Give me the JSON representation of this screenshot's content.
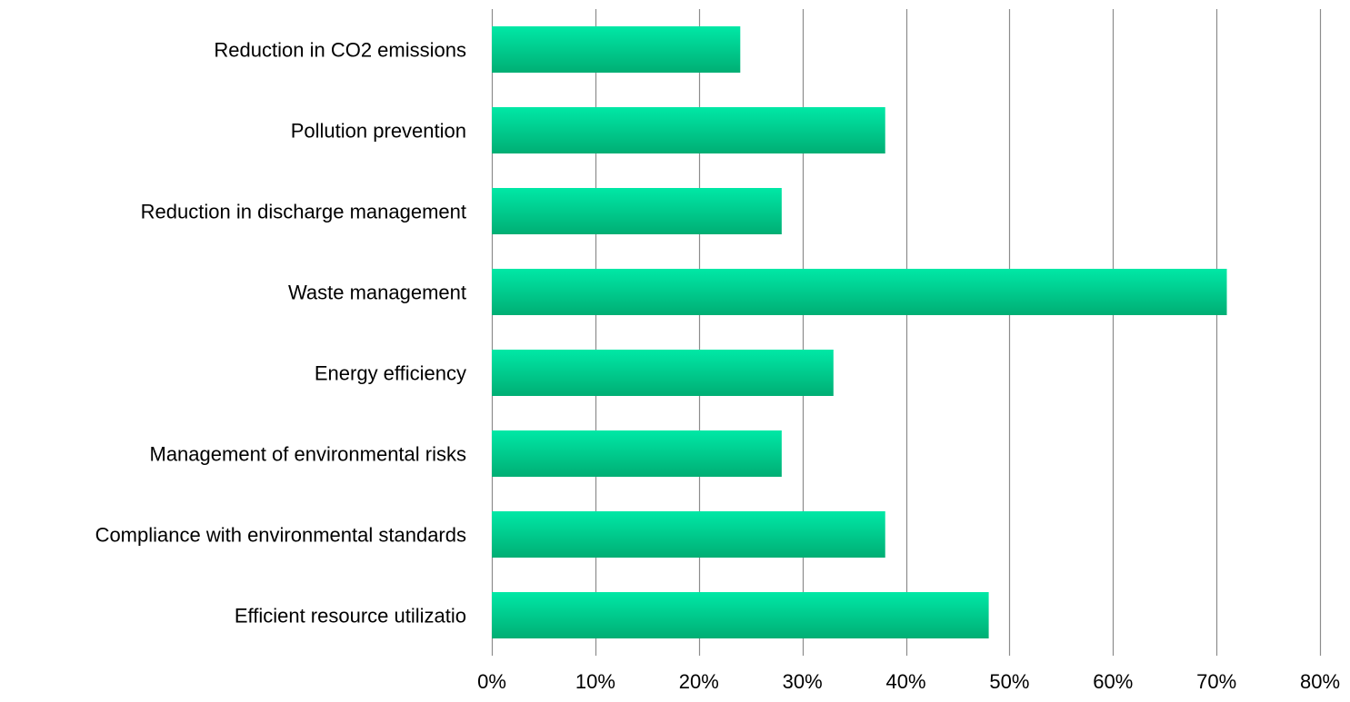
{
  "chart_data": {
    "type": "bar",
    "orientation": "horizontal",
    "title": "",
    "xlabel": "",
    "ylabel": "",
    "categories": [
      "Reduction in CO2 emissions",
      "Pollution prevention",
      "Reduction in discharge management",
      "Waste management",
      "Energy efficiency",
      "Management of environmental risks",
      "Compliance with environmental standards",
      "Efficient resource utilizatio"
    ],
    "values": [
      24,
      38,
      28,
      71,
      33,
      28,
      38,
      48
    ],
    "xlim": [
      0,
      80
    ],
    "ticks": [
      0,
      10,
      20,
      30,
      40,
      50,
      60,
      70,
      80
    ],
    "tick_labels": [
      "0%",
      "10%",
      "20%",
      "30%",
      "40%",
      "50%",
      "60%",
      "70%",
      "80%"
    ],
    "grid": true,
    "legend": "none",
    "colors": {
      "bar_top": "#00e8a6",
      "bar_bottom": "#00ae74",
      "grid": "#8c8c8c",
      "text": "#000000"
    }
  }
}
